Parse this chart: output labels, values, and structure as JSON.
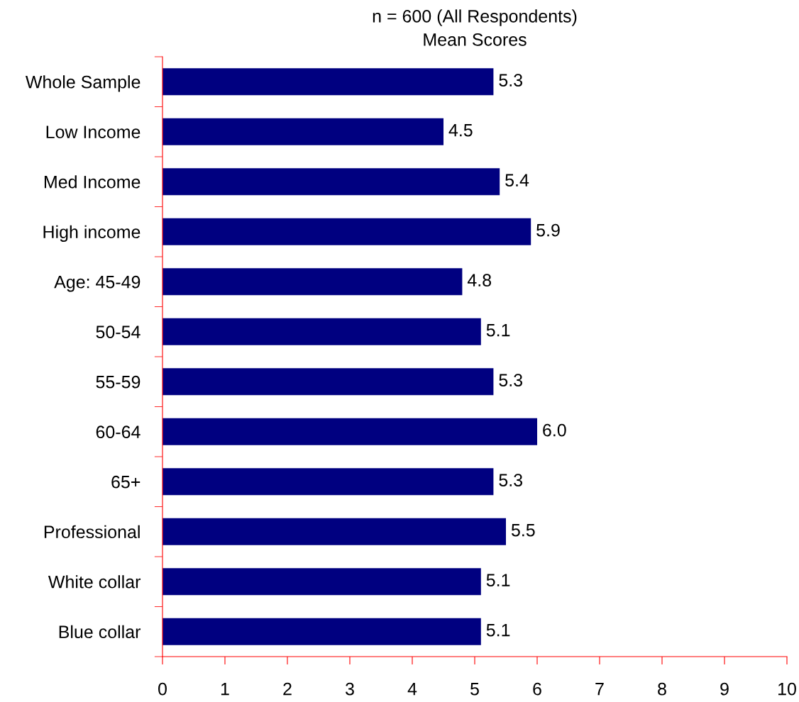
{
  "chart_data": {
    "type": "bar",
    "orientation": "horizontal",
    "title": "n = 600 (All Respondents)",
    "subtitle": "Mean Scores",
    "categories": [
      "Whole Sample",
      "Low Income",
      "Med Income",
      "High income",
      "Age: 45-49",
      "50-54",
      "55-59",
      "60-64",
      "65+",
      "Professional",
      "White collar",
      "Blue collar"
    ],
    "values": [
      5.3,
      4.5,
      5.4,
      5.9,
      4.8,
      5.1,
      5.3,
      6.0,
      5.3,
      5.5,
      5.1,
      5.1
    ],
    "value_labels": [
      "5.3",
      "4.5",
      "5.4",
      "5.9",
      "4.8",
      "5.1",
      "5.3",
      "6.0",
      "5.3",
      "5.5",
      "5.1",
      "5.1"
    ],
    "color": "#000080",
    "xlim": [
      0,
      10
    ],
    "xticks": [
      0,
      1,
      2,
      3,
      4,
      5,
      6,
      7,
      8,
      9,
      10
    ],
    "grid": false,
    "legend": false
  }
}
